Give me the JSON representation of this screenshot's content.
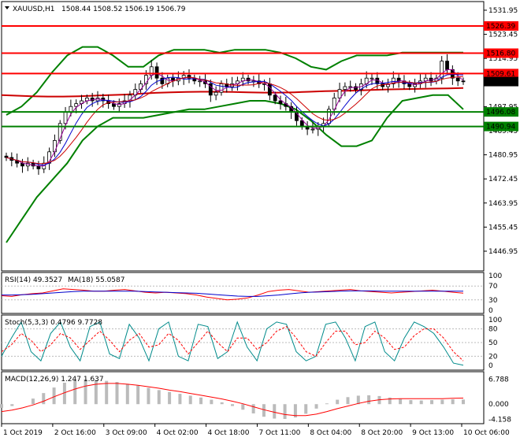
{
  "header": {
    "symbol": "XAUUSD,H1",
    "quote": "1508.44 1508.52 1506.19 1506.79"
  },
  "colors": {
    "resistance": "#ff0000",
    "support": "#008000",
    "bollinger": "#008000",
    "ma_red": "#cc0000",
    "ma_blue": "#0000cc",
    "ma_purple": "#990099",
    "rsi": "#ff0000",
    "rsi_ma": "#0000cc",
    "stoch_main": "#008b8b",
    "stoch_signal": "#ff0000",
    "macd_hist": "#bbbbbb",
    "macd_signal": "#ff0000"
  },
  "chart_data": [
    {
      "type": "candlestick",
      "name": "price",
      "ylim": [
        1440,
        1535
      ],
      "y_ticks": [
        1531.95,
        1523.45,
        1514.95,
        1497.95,
        1489.45,
        1480.95,
        1472.45,
        1463.95,
        1455.45,
        1446.95
      ],
      "x_ticks": [
        "1 Oct 2019",
        "2 Oct 16:00",
        "3 Oct 09:00",
        "4 Oct 02:00",
        "4 Oct 18:00",
        "7 Oct 11:00",
        "8 Oct 04:00",
        "8 Oct 20:00",
        "9 Oct 13:00",
        "10 Oct 06:00"
      ],
      "levels": [
        {
          "value": 1526.39,
          "label": "1526.39",
          "kind": "resistance"
        },
        {
          "value": 1516.8,
          "label": "1516.80",
          "kind": "resistance"
        },
        {
          "value": 1509.61,
          "label": "1509.61",
          "kind": "resistance"
        },
        {
          "value": 1496.08,
          "label": "1496.08",
          "kind": "support"
        },
        {
          "value": 1490.94,
          "label": "1490.94",
          "kind": "support"
        }
      ],
      "last_price": {
        "value": 1506.79,
        "label": "1506.79"
      },
      "closes": [
        1480,
        1479,
        1478,
        1477,
        1478,
        1477,
        1476,
        1478,
        1482,
        1486,
        1492,
        1496,
        1498,
        1499,
        1500,
        1501,
        1500,
        1501,
        1500,
        1499,
        1498,
        1499,
        1500,
        1502,
        1504,
        1506,
        1509,
        1512,
        1508,
        1506,
        1508,
        1507,
        1508,
        1509,
        1508,
        1507,
        1507,
        1506,
        1502,
        1503,
        1506,
        1505,
        1506,
        1507,
        1508,
        1507,
        1507,
        1506,
        1506,
        1502,
        1500,
        1499,
        1498,
        1496,
        1493,
        1491,
        1490,
        1490,
        1491,
        1492,
        1497,
        1501,
        1504,
        1505,
        1505,
        1504,
        1506,
        1508,
        1508,
        1506,
        1505,
        1506,
        1508,
        1507,
        1506,
        1505,
        1506,
        1507,
        1508,
        1507,
        1508,
        1514,
        1511,
        1508,
        1507,
        1506.79
      ],
      "bollinger_upper": [
        1495,
        1498,
        1503,
        1510,
        1516,
        1519,
        1519,
        1516,
        1512,
        1512,
        1516,
        1518,
        1518,
        1518,
        1517,
        1518,
        1518,
        1518,
        1517,
        1515,
        1512,
        1511,
        1514,
        1516,
        1516,
        1516,
        1517,
        1517,
        1517,
        1517,
        1517
      ],
      "bollinger_lower": [
        1450,
        1458,
        1466,
        1472,
        1478,
        1486,
        1491,
        1494,
        1494,
        1494,
        1495,
        1496,
        1497,
        1497,
        1498,
        1499,
        1500,
        1500,
        1499,
        1497,
        1493,
        1488,
        1484,
        1484,
        1486,
        1494,
        1500,
        1501,
        1502,
        1502,
        1497
      ],
      "ma_slow": [
        1502,
        1501.8,
        1501.6,
        1501.5,
        1501.5,
        1501.6,
        1501.8,
        1502,
        1502.2,
        1502.5,
        1502.8,
        1503,
        1503.1,
        1503.2,
        1503.2,
        1503.1,
        1503,
        1502.9,
        1502.9,
        1503,
        1503.2,
        1503.4,
        1503.5,
        1503.6,
        1503.8,
        1504,
        1504.1,
        1504.2,
        1504.3,
        1504.4,
        1504.5
      ]
    },
    {
      "type": "line",
      "name": "RSI(14) 49.3527",
      "ma_name": "MA(18) 55.0587",
      "ylim": [
        0,
        100
      ],
      "y_ticks": [
        100,
        70,
        30,
        0
      ],
      "values": [
        42,
        40,
        45,
        48,
        50,
        56,
        62,
        60,
        58,
        55,
        55,
        58,
        60,
        56,
        52,
        50,
        52,
        50,
        48,
        44,
        38,
        34,
        30,
        32,
        36,
        44,
        54,
        58,
        60,
        56,
        52,
        54,
        56,
        58,
        60,
        56,
        54,
        52,
        50,
        52,
        54,
        56,
        58,
        55,
        52,
        49.35
      ],
      "ma_values": [
        44,
        44,
        45,
        46,
        48,
        50,
        52,
        54,
        55,
        55,
        55,
        55,
        55,
        55,
        54,
        53,
        52,
        51,
        50,
        49,
        47,
        45,
        43,
        41,
        40,
        40,
        42,
        44,
        47,
        50,
        52,
        53,
        54,
        55,
        56,
        56,
        56,
        55,
        55,
        55,
        55,
        55,
        55,
        55,
        55,
        55.06
      ]
    },
    {
      "type": "line",
      "name": "Stoch(5,3,3) 0.4796 9.7728",
      "ylim": [
        0,
        100
      ],
      "y_ticks": [
        100,
        80,
        50,
        20,
        0
      ],
      "main": [
        20,
        60,
        95,
        30,
        10,
        70,
        95,
        40,
        10,
        85,
        95,
        25,
        15,
        90,
        60,
        10,
        80,
        95,
        20,
        10,
        90,
        85,
        15,
        30,
        95,
        40,
        10,
        80,
        95,
        90,
        30,
        10,
        20,
        90,
        95,
        60,
        10,
        85,
        95,
        30,
        10,
        60,
        95,
        85,
        70,
        40,
        5,
        0.48
      ],
      "signal": [
        30,
        45,
        70,
        55,
        30,
        45,
        70,
        60,
        35,
        55,
        75,
        55,
        30,
        55,
        70,
        40,
        45,
        70,
        55,
        25,
        50,
        75,
        50,
        30,
        60,
        60,
        35,
        50,
        75,
        85,
        60,
        30,
        20,
        50,
        75,
        75,
        45,
        50,
        75,
        60,
        35,
        40,
        65,
        80,
        80,
        60,
        30,
        9.77
      ]
    },
    {
      "type": "bar",
      "name": "MACD(12,26,9) 1.247 1.637",
      "ylim": [
        -4,
        7.5
      ],
      "y_ticks": [
        6.788,
        0.0,
        -4.158
      ],
      "values": [
        -1,
        -0.5,
        0,
        1.5,
        3,
        4.5,
        5.8,
        6.5,
        6.8,
        6.6,
        6.3,
        6.0,
        5.5,
        5.0,
        4.4,
        3.8,
        3.3,
        2.8,
        2.3,
        1.8,
        1.2,
        0.5,
        -0.5,
        -1.5,
        -2.5,
        -3.4,
        -3.9,
        -4.0,
        -3.6,
        -2.6,
        -1.2,
        0.2,
        1.2,
        1.9,
        2.3,
        2.4,
        2.2,
        1.8,
        1.4,
        1.1,
        1.0,
        1.1,
        1.2,
        1.3,
        1.25
      ],
      "signal": [
        -2,
        -1.6,
        -1.0,
        -0.2,
        0.8,
        2.0,
        3.1,
        4.1,
        4.9,
        5.4,
        5.6,
        5.6,
        5.4,
        5.1,
        4.7,
        4.3,
        3.8,
        3.4,
        2.9,
        2.4,
        1.9,
        1.4,
        0.8,
        0.1,
        -0.7,
        -1.5,
        -2.2,
        -2.8,
        -3.1,
        -3.1,
        -2.7,
        -2.0,
        -1.2,
        -0.5,
        0.2,
        0.8,
        1.2,
        1.4,
        1.5,
        1.5,
        1.5,
        1.5,
        1.5,
        1.6,
        1.64
      ]
    }
  ]
}
